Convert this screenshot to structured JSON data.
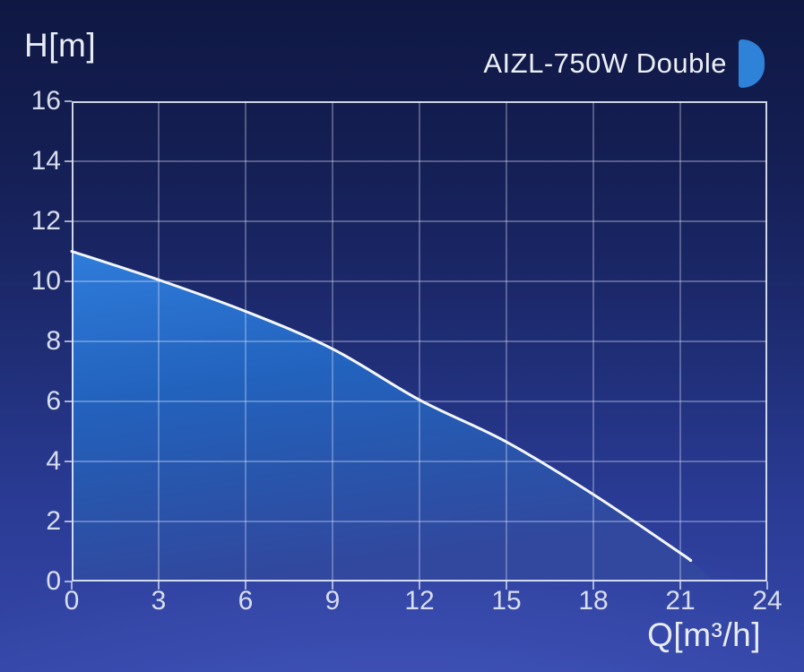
{
  "theme": {
    "background_top": "#0f1843",
    "background_bottom": "#3547a8",
    "accent_blue": "#2e82d8",
    "curve_color": "#f3f7ff",
    "fill_top": "#2f7cda",
    "fill_mid": "#2263be",
    "fill_bottom": "#31489e",
    "grid_color": "rgba(235,240,255,0.5)",
    "border_color": "rgba(240,244,255,0.85)",
    "tick_text_color": "#d8ddec"
  },
  "chart_data": {
    "type": "area",
    "title": "AIZL-750W Double",
    "xlabel": "Q[m³/h]",
    "ylabel": "H[m]",
    "xlim": [
      0,
      24
    ],
    "ylim": [
      0,
      16
    ],
    "x_ticks": [
      0,
      3,
      6,
      9,
      12,
      15,
      18,
      21,
      24
    ],
    "y_ticks": [
      0,
      2,
      4,
      6,
      8,
      10,
      12,
      14,
      16
    ],
    "grid": true,
    "legend": false,
    "series": [
      {
        "name": "AIZL-750W Double",
        "points": [
          [
            0,
            11
          ],
          [
            3,
            10.05
          ],
          [
            6,
            9.0
          ],
          [
            9,
            7.75
          ],
          [
            12,
            6.05
          ],
          [
            15,
            4.65
          ],
          [
            18,
            2.9
          ],
          [
            21,
            0.95
          ],
          [
            21.35,
            0.7
          ]
        ],
        "area_end": [
          22.2,
          0
        ]
      }
    ]
  }
}
